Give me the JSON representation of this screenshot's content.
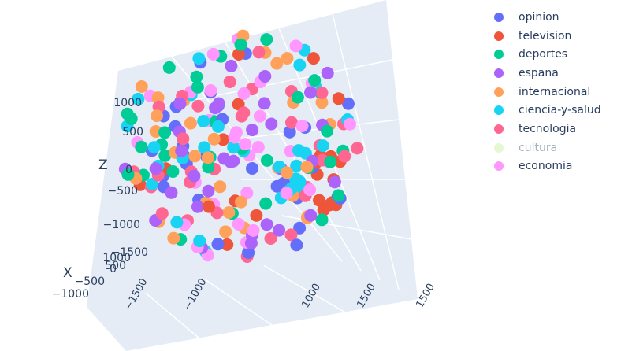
{
  "chart_data": {
    "type": "scatter",
    "dimensions": "3d",
    "axes": {
      "x": {
        "title": "X",
        "ticks": [
          "−1000",
          "−500",
          "0",
          "500",
          "1000"
        ]
      },
      "y": {
        "title": "",
        "ticks": [
          "−1500",
          "−1000",
          "−500",
          "0",
          "500",
          "1000",
          "1500"
        ]
      },
      "z": {
        "title": "Z",
        "ticks": [
          "−1000",
          "−500",
          "0",
          "500",
          "1000"
        ],
        "range": [
          -1200,
          1200
        ]
      }
    },
    "legend_position": "top-right",
    "series": [
      {
        "name": "opinion",
        "color": "#636efa",
        "visible": true
      },
      {
        "name": "television",
        "color": "#ef553b",
        "visible": true
      },
      {
        "name": "deportes",
        "color": "#00cc96",
        "visible": true
      },
      {
        "name": "espana",
        "color": "#ab63fa",
        "visible": true
      },
      {
        "name": "internacional",
        "color": "#ffa15a",
        "visible": true
      },
      {
        "name": "ciencia-y-salud",
        "color": "#19d3f3",
        "visible": true
      },
      {
        "name": "tecnologia",
        "color": "#ff6692",
        "visible": true
      },
      {
        "name": "cultura",
        "color": "#b6e880",
        "visible": false
      },
      {
        "name": "economia",
        "color": "#ff97ff",
        "visible": true
      }
    ]
  }
}
